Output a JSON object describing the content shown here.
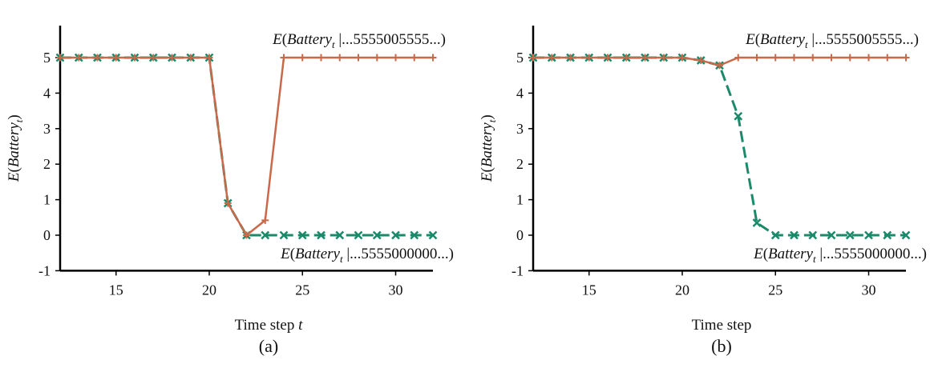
{
  "chart_data": [
    {
      "panel": "(a)",
      "type": "line",
      "xlabel": "Time step t",
      "ylabel": "E(Battery_t)",
      "xlim": [
        12,
        32
      ],
      "ylim": [
        -1,
        5.8
      ],
      "xticks": [
        15,
        20,
        25,
        30
      ],
      "yticks": [
        -1,
        0,
        1,
        2,
        3,
        4,
        5
      ],
      "grid": false,
      "series": [
        {
          "name": "E(Battery_t |...5555005555...)",
          "color": "#c8694a",
          "dash": "solid",
          "marker": "plus",
          "x": [
            12,
            13,
            14,
            15,
            16,
            17,
            18,
            19,
            20,
            21,
            22,
            23,
            24,
            25,
            26,
            27,
            28,
            29,
            30,
            31,
            32
          ],
          "y": [
            5,
            5,
            5,
            5,
            5,
            5,
            5,
            5,
            5,
            0.9,
            0,
            0.42,
            5,
            5,
            5,
            5,
            5,
            5,
            5,
            5,
            5
          ]
        },
        {
          "name": "E(Battery_t |...5555000000...)",
          "color": "#1a8a6a",
          "dash": "dashed",
          "marker": "x",
          "x": [
            12,
            13,
            14,
            15,
            16,
            17,
            18,
            19,
            20,
            21,
            22,
            23,
            24,
            25,
            26,
            27,
            28,
            29,
            30,
            31,
            32
          ],
          "y": [
            5,
            5,
            5,
            5,
            5,
            5,
            5,
            5,
            5,
            0.9,
            0,
            0,
            0,
            0,
            0,
            0,
            0,
            0,
            0,
            0,
            0
          ]
        }
      ]
    },
    {
      "panel": "(b)",
      "type": "line",
      "xlabel": "Time step",
      "ylabel": "E(Battery_t)",
      "xlim": [
        12,
        32
      ],
      "ylim": [
        -1,
        5.8
      ],
      "xticks": [
        15,
        20,
        25,
        30
      ],
      "yticks": [
        -1,
        0,
        1,
        2,
        3,
        4,
        5
      ],
      "grid": false,
      "series": [
        {
          "name": "E(Battery_t |...5555005555...)",
          "color": "#c8694a",
          "dash": "solid",
          "marker": "plus",
          "x": [
            12,
            13,
            14,
            15,
            16,
            17,
            18,
            19,
            20,
            21,
            22,
            23,
            24,
            25,
            26,
            27,
            28,
            29,
            30,
            31,
            32
          ],
          "y": [
            5,
            5,
            5,
            5,
            5,
            5,
            5,
            5,
            5,
            4.92,
            4.78,
            5,
            5,
            5,
            5,
            5,
            5,
            5,
            5,
            5,
            5
          ]
        },
        {
          "name": "E(Battery_t |...5555000000...)",
          "color": "#1a8a6a",
          "dash": "dashed",
          "marker": "x",
          "x": [
            12,
            13,
            14,
            15,
            16,
            17,
            18,
            19,
            20,
            21,
            22,
            23,
            24,
            25,
            26,
            27,
            28,
            29,
            30,
            31,
            32
          ],
          "y": [
            5,
            5,
            5,
            5,
            5,
            5,
            5,
            5,
            5,
            4.92,
            4.78,
            3.35,
            0.35,
            0,
            0,
            0,
            0,
            0,
            0,
            0,
            0
          ]
        }
      ]
    }
  ]
}
